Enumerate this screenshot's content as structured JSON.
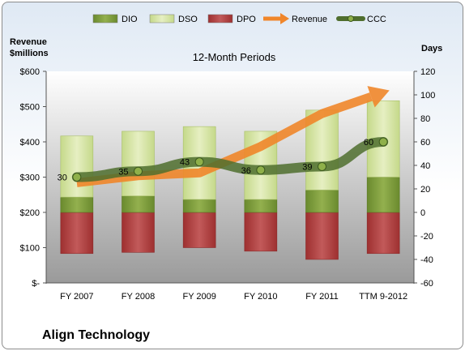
{
  "chart_data": {
    "type": "bar",
    "title": "12-Month Periods",
    "company": "Align Technology",
    "categories": [
      "FY 2007",
      "FY 2008",
      "FY 2009",
      "FY 2010",
      "FY 2011",
      "TTM 9-2012"
    ],
    "left_axis": {
      "label_line1": "Revenue",
      "label_line2": "$millions",
      "ticks": [
        "$-",
        "$100",
        "$200",
        "$300",
        "$400",
        "$500",
        "$600"
      ],
      "ylim": [
        0,
        600
      ]
    },
    "right_axis": {
      "label": "Days",
      "ticks": [
        "-60",
        "-40",
        "-20",
        "0",
        "20",
        "40",
        "60",
        "80",
        "100",
        "120"
      ],
      "ylim": [
        -60,
        120
      ]
    },
    "legend": [
      "DIO",
      "DSO",
      "DPO",
      "Revenue",
      "CCC"
    ],
    "series": [
      {
        "name": "DIO",
        "type": "stacked-bar",
        "axis": "days",
        "color": "#7a9a3a",
        "values": [
          13,
          14,
          11,
          11,
          19,
          30
        ]
      },
      {
        "name": "DSO",
        "type": "stacked-bar",
        "axis": "days",
        "color": "#d7e4a6",
        "values": [
          52,
          55,
          62,
          58,
          68,
          65
        ]
      },
      {
        "name": "DPO",
        "type": "negative-bar",
        "axis": "days",
        "color": "#b23b3b",
        "values": [
          -35,
          -34,
          -30,
          -33,
          -40,
          -35
        ]
      },
      {
        "name": "Revenue",
        "type": "arrow-line",
        "axis": "revenue",
        "color": "#f0862a",
        "values": [
          284,
          304,
          312,
          387,
          480,
          540
        ]
      },
      {
        "name": "CCC",
        "type": "line",
        "axis": "days",
        "color": "#4f6e2e",
        "values": [
          30,
          35,
          43,
          36,
          39,
          60
        ]
      }
    ],
    "data_labels": [
      "30",
      "35",
      "43",
      "36",
      "39",
      "60"
    ],
    "legend_position": "top",
    "grid": false
  }
}
